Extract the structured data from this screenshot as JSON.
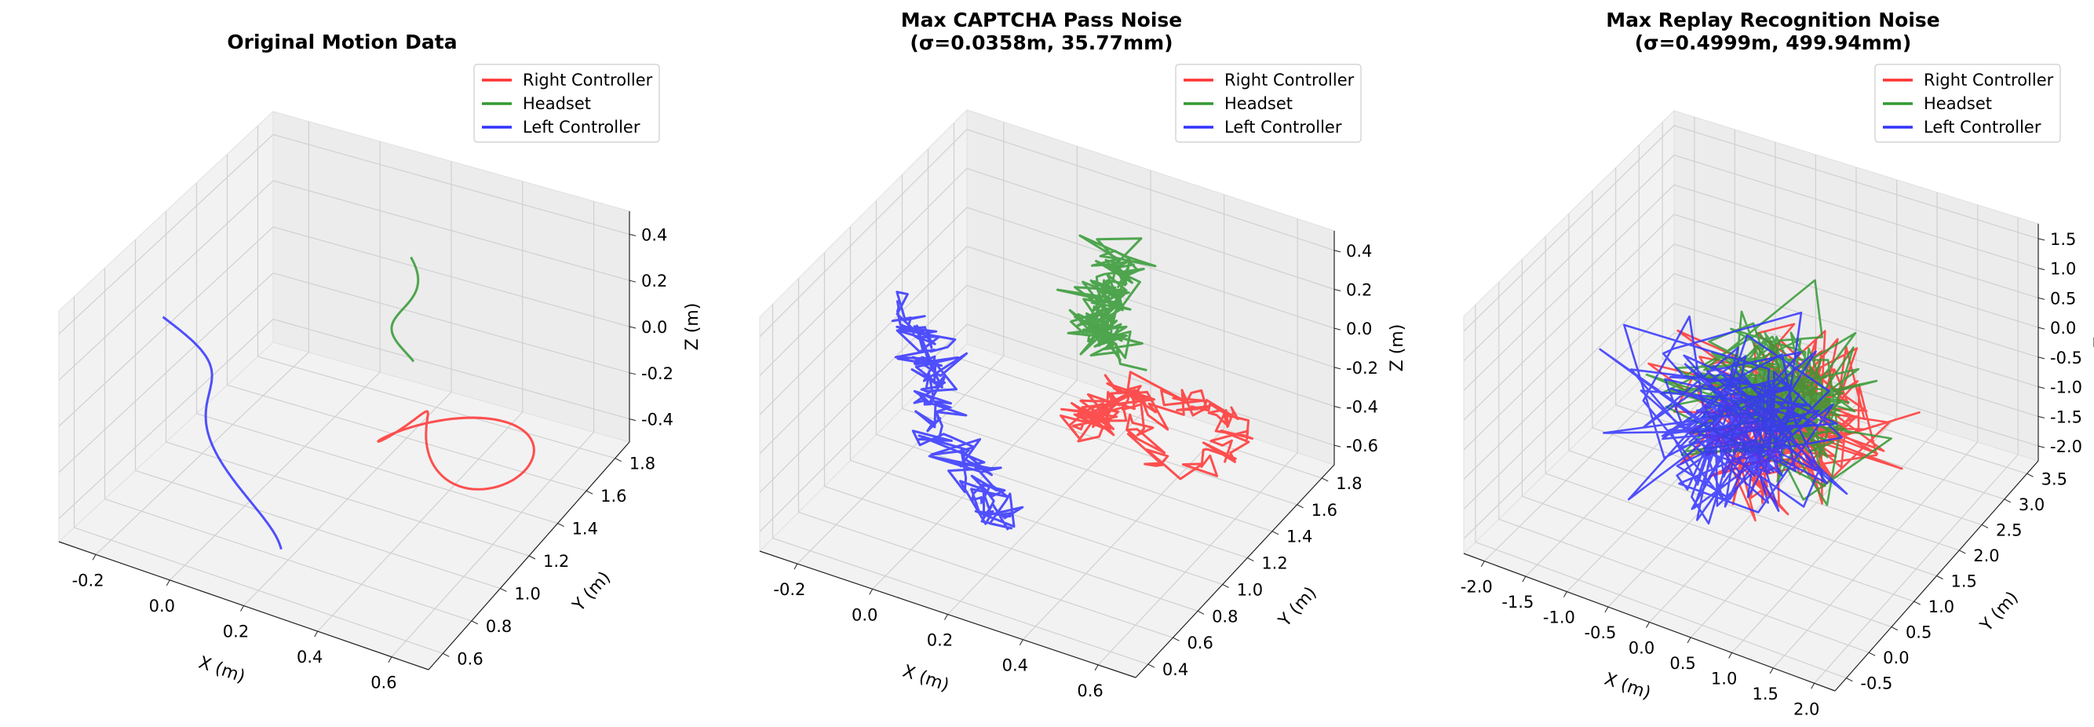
{
  "chart_data": [
    {
      "type": "line3d",
      "title": "Original Motion Data",
      "xlabel": "X (m)",
      "ylabel": "Y (m)",
      "zlabel": "Z (m)",
      "xlim": [
        -0.25,
        0.72
      ],
      "ylim": [
        0.55,
        1.85
      ],
      "zlim": [
        -0.5,
        0.48
      ],
      "xticks": [
        "-0.2",
        "0.0",
        "0.2",
        "0.4",
        "0.6"
      ],
      "yticks": [
        "0.6",
        "0.8",
        "1.0",
        "1.2",
        "1.4",
        "1.6",
        "1.8"
      ],
      "zticks": [
        "-0.4",
        "-0.2",
        "0.0",
        "0.2",
        "0.4"
      ],
      "noise": 0,
      "legend": [
        "Right Controller",
        "Headset",
        "Left Controller"
      ]
    },
    {
      "type": "line3d",
      "title": "Max CAPTCHA Pass Noise",
      "subtitle": "(σ=0.0358m, 35.77mm)",
      "xlabel": "X (m)",
      "ylabel": "Y (m)",
      "zlabel": "Z (m)",
      "xlim": [
        -0.3,
        0.75
      ],
      "ylim": [
        0.4,
        1.9
      ],
      "zlim": [
        -0.62,
        0.48
      ],
      "xticks": [
        "-0.2",
        "0.0",
        "0.2",
        "0.4",
        "0.6"
      ],
      "yticks": [
        "0.4",
        "0.6",
        "0.8",
        "1.0",
        "1.2",
        "1.4",
        "1.6",
        "1.8"
      ],
      "zticks": [
        "-0.6",
        "-0.4",
        "-0.2",
        "0.0",
        "0.2",
        "0.4"
      ],
      "noise": 0.0358,
      "legend": [
        "Right Controller",
        "Headset",
        "Left Controller"
      ]
    },
    {
      "type": "line3d",
      "title": "Max Replay Recognition Noise",
      "subtitle": "(σ=0.4999m, 499.94mm)",
      "xlabel": "X (m)",
      "ylabel": "Y (m)",
      "zlabel": "Z",
      "xlim": [
        -2.2,
        2.1
      ],
      "ylim": [
        -0.7,
        3.7
      ],
      "zlim": [
        -2.15,
        1.8
      ],
      "xticks": [
        "-2.0",
        "-1.5",
        "-1.0",
        "-0.5",
        "0.0",
        "0.5",
        "1.0",
        "1.5",
        "2.0"
      ],
      "yticks": [
        "-0.5",
        "0.0",
        "0.5",
        "1.0",
        "1.5",
        "2.0",
        "2.5",
        "3.0",
        "3.5"
      ],
      "zticks": [
        "-2.0",
        "-1.5",
        "-1.0",
        "-0.5",
        "0.0",
        "0.5",
        "1.0",
        "1.5"
      ],
      "noise": 0.4999,
      "legend": [
        "Right Controller",
        "Headset",
        "Left Controller"
      ]
    }
  ],
  "series_colors": [
    "#ff3333",
    "#339933",
    "#3333ff"
  ]
}
